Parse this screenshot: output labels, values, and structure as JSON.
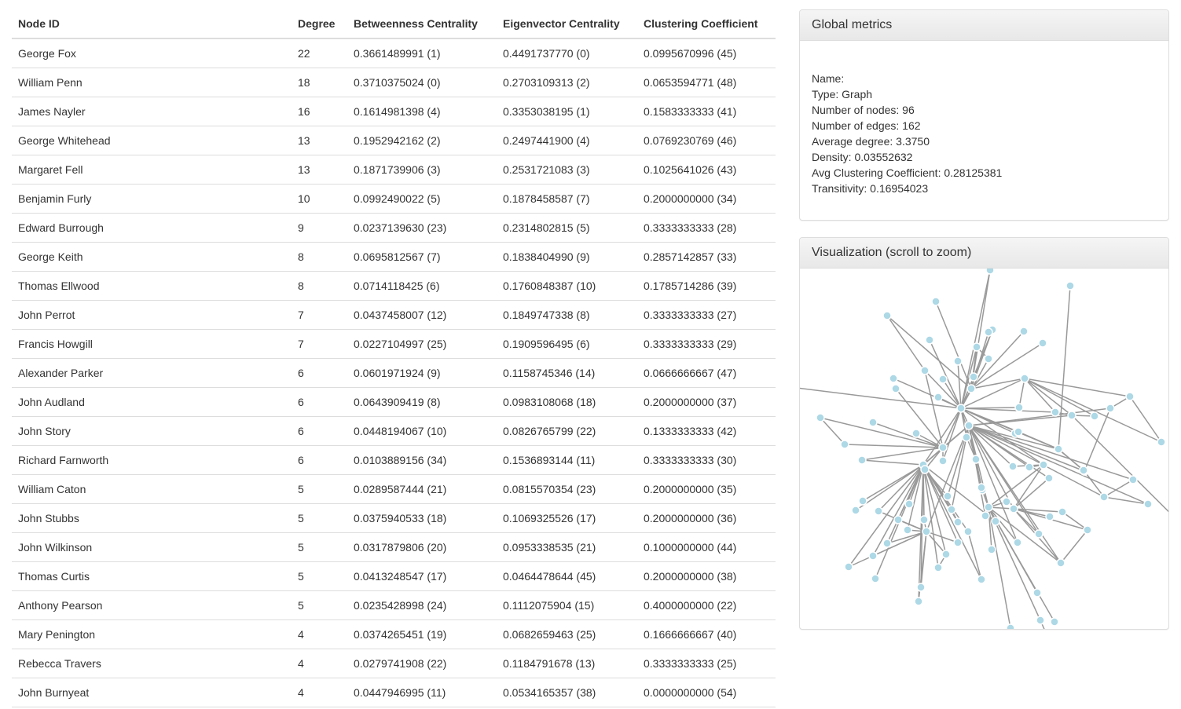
{
  "table": {
    "headers": [
      "Node ID",
      "Degree",
      "Betweenness Centrality",
      "Eigenvector Centrality",
      "Clustering Coefficient"
    ],
    "rows": [
      [
        "George Fox",
        "22",
        "0.3661489991 (1)",
        "0.4491737770 (0)",
        "0.0995670996 (45)"
      ],
      [
        "William Penn",
        "18",
        "0.3710375024 (0)",
        "0.2703109313 (2)",
        "0.0653594771 (48)"
      ],
      [
        "James Nayler",
        "16",
        "0.1614981398 (4)",
        "0.3353038195 (1)",
        "0.1583333333 (41)"
      ],
      [
        "George Whitehead",
        "13",
        "0.1952942162 (2)",
        "0.2497441900 (4)",
        "0.0769230769 (46)"
      ],
      [
        "Margaret Fell",
        "13",
        "0.1871739906 (3)",
        "0.2531721083 (3)",
        "0.1025641026 (43)"
      ],
      [
        "Benjamin Furly",
        "10",
        "0.0992490022 (5)",
        "0.1878458587 (7)",
        "0.2000000000 (34)"
      ],
      [
        "Edward Burrough",
        "9",
        "0.0237139630 (23)",
        "0.2314802815 (5)",
        "0.3333333333 (28)"
      ],
      [
        "George Keith",
        "8",
        "0.0695812567 (7)",
        "0.1838404990 (9)",
        "0.2857142857 (33)"
      ],
      [
        "Thomas Ellwood",
        "8",
        "0.0714118425 (6)",
        "0.1760848387 (10)",
        "0.1785714286 (39)"
      ],
      [
        "John Perrot",
        "7",
        "0.0437458007 (12)",
        "0.1849747338 (8)",
        "0.3333333333 (27)"
      ],
      [
        "Francis Howgill",
        "7",
        "0.0227104997 (25)",
        "0.1909596495 (6)",
        "0.3333333333 (29)"
      ],
      [
        "Alexander Parker",
        "6",
        "0.0601971924 (9)",
        "0.1158745346 (14)",
        "0.0666666667 (47)"
      ],
      [
        "John Audland",
        "6",
        "0.0643909419 (8)",
        "0.0983108068 (18)",
        "0.2000000000 (37)"
      ],
      [
        "John Story",
        "6",
        "0.0448194067 (10)",
        "0.0826765799 (22)",
        "0.1333333333 (42)"
      ],
      [
        "Richard Farnworth",
        "6",
        "0.0103889156 (34)",
        "0.1536893144 (11)",
        "0.3333333333 (30)"
      ],
      [
        "William Caton",
        "5",
        "0.0289587444 (21)",
        "0.0815570354 (23)",
        "0.2000000000 (35)"
      ],
      [
        "John Stubbs",
        "5",
        "0.0375940533 (18)",
        "0.1069325526 (17)",
        "0.2000000000 (36)"
      ],
      [
        "John Wilkinson",
        "5",
        "0.0317879806 (20)",
        "0.0953338535 (21)",
        "0.1000000000 (44)"
      ],
      [
        "Thomas Curtis",
        "5",
        "0.0413248547 (17)",
        "0.0464478644 (45)",
        "0.2000000000 (38)"
      ],
      [
        "Anthony Pearson",
        "5",
        "0.0235428998 (24)",
        "0.1112075904 (15)",
        "0.4000000000 (22)"
      ],
      [
        "Mary Penington",
        "4",
        "0.0374265451 (19)",
        "0.0682659463 (25)",
        "0.1666666667 (40)"
      ],
      [
        "Rebecca Travers",
        "4",
        "0.0279741908 (22)",
        "0.1184791678 (13)",
        "0.3333333333 (25)"
      ],
      [
        "John Burnyeat",
        "4",
        "0.0447946995 (11)",
        "0.0534165357 (38)",
        "0.0000000000 (54)"
      ]
    ]
  },
  "global_metrics": {
    "title": "Global metrics",
    "lines": [
      "Name:",
      "Type: Graph",
      "Number of nodes: 96",
      "Number of edges: 162",
      "Average degree: 3.3750",
      "Density: 0.03552632",
      "Avg Clustering Coefficient: 0.28125381",
      "Transitivity: 0.16954023"
    ]
  },
  "visualization": {
    "title": "Visualization (scroll to zoom)",
    "node_color": "#add8e6",
    "edge_color": "#999999"
  }
}
